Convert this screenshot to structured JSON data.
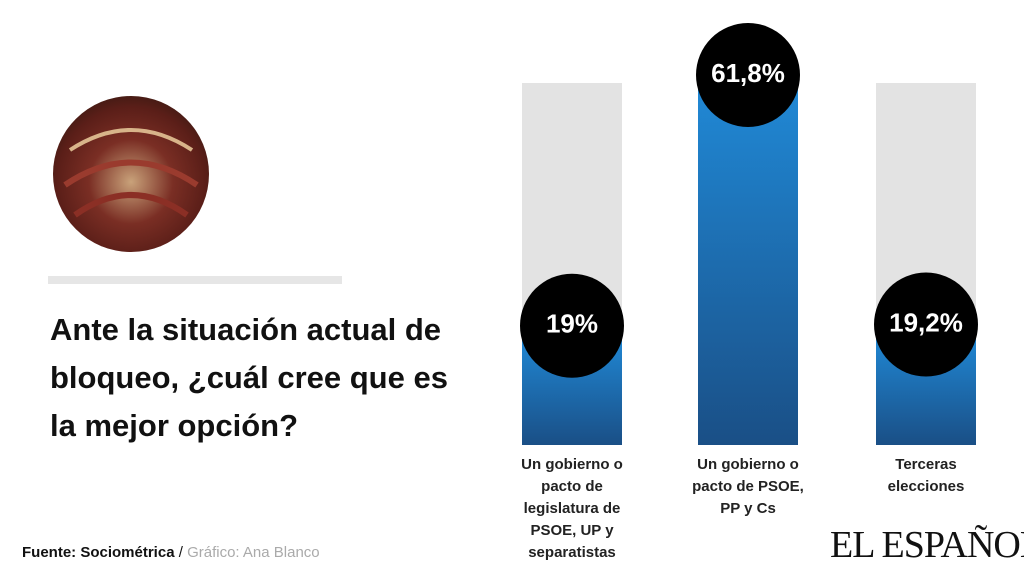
{
  "chart_data": {
    "type": "bar",
    "title": "Ante la situación actual de bloqueo, ¿cuál cree que es la mejor opción?",
    "categories": [
      "Un gobierno o pacto de legislatura de PSOE, UP y separatistas",
      "Un gobierno o pacto de PSOE, PP y Cs",
      "Terceras elecciones"
    ],
    "values": [
      19,
      61.8,
      19.2
    ],
    "value_labels": [
      "19%",
      "61,8%",
      "19,2%"
    ],
    "color": "#1f7cc4",
    "source": "Fuente: Sociométrica",
    "credit": "Gráfico: Ana Blanco",
    "logo": "EL ESPAÑOL"
  }
}
